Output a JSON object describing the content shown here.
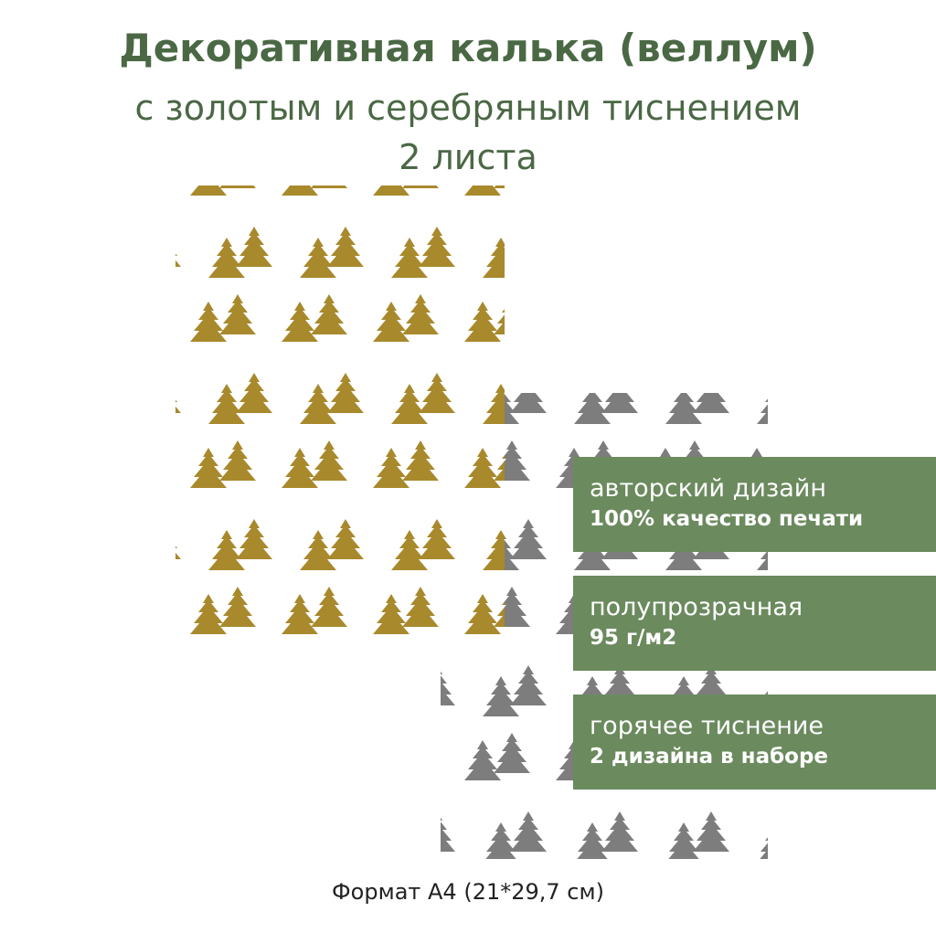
{
  "header": {
    "title": "Декоративная калька (веллум)",
    "subtitle": "с золотым и серебряным тиснением",
    "count": "2 листа"
  },
  "features": [
    {
      "title": "авторский дизайн",
      "subtitle": "100% качество печати"
    },
    {
      "title": "полупрозрачная",
      "subtitle": "95 г/м2"
    },
    {
      "title": "горячее тиснение",
      "subtitle": "2 дизайна в наборе"
    }
  ],
  "footer": "Формат А4 (21*29,7 см)"
}
